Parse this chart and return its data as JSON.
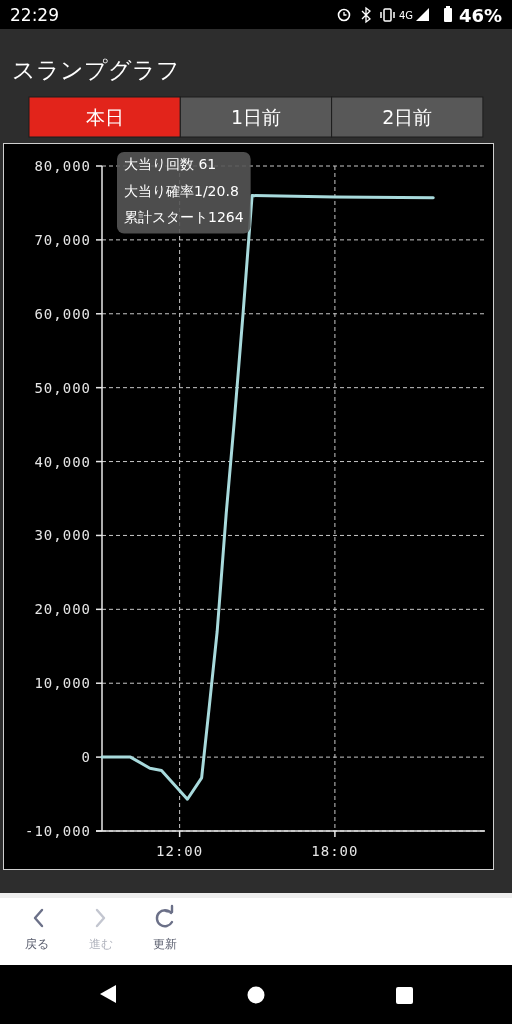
{
  "chart_data": {
    "type": "line",
    "title": "スランプグラフ",
    "x": [
      9.0,
      10.1,
      10.85,
      11.3,
      12.3,
      12.85,
      13.15,
      13.45,
      13.8,
      14.1,
      14.45,
      14.8,
      18.0,
      21.8
    ],
    "values": [
      0,
      0,
      -1500,
      -1800,
      -5700,
      -2800,
      7000,
      17000,
      33000,
      45000,
      60000,
      76000,
      75800,
      75700
    ],
    "color": "#a8dadc",
    "xlim": [
      9,
      23.8
    ],
    "xticks": [
      {
        "value": 12,
        "label": "12:00"
      },
      {
        "value": 18,
        "label": "18:00"
      }
    ],
    "ylim": [
      -10000,
      80000
    ],
    "yticks": [
      {
        "value": -10000,
        "label": "-10,000"
      },
      0,
      {
        "value": 10000,
        "label": "10,000"
      },
      {
        "value": 20000,
        "label": "20,000"
      },
      {
        "value": 30000,
        "label": "30,000"
      },
      {
        "value": 40000,
        "label": "40,000"
      },
      {
        "value": 50000,
        "label": "50,000"
      },
      {
        "value": 60000,
        "label": "60,000"
      },
      {
        "value": 70000,
        "label": "70,000"
      },
      {
        "value": 80000,
        "label": "80,000"
      }
    ],
    "grid": true,
    "annotations": [
      "22:29",
      "4G",
      "46%",
      "本日",
      "1日前",
      "2日前",
      "大当り回数 61",
      "大当り確率1/20.8",
      "累計スタート1264",
      "戻る",
      "進む",
      "更新"
    ]
  }
}
